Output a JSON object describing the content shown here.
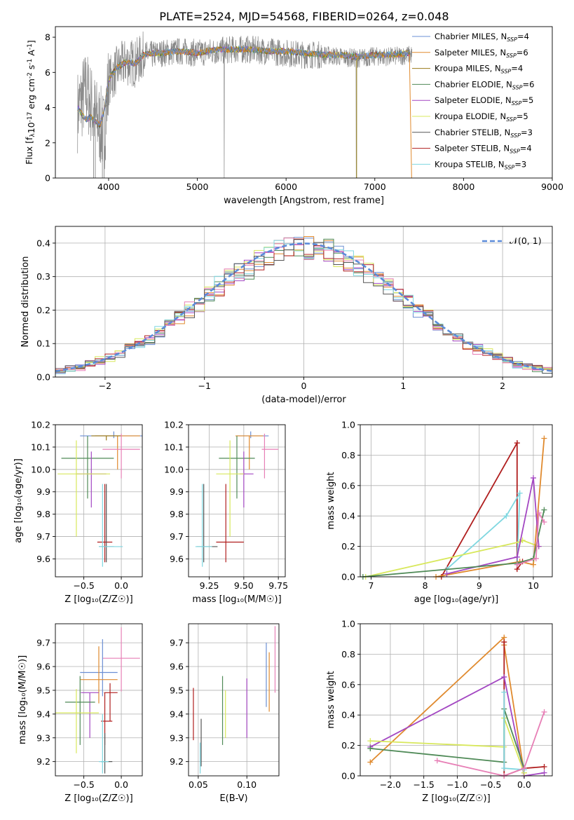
{
  "title": "PLATE=2524, MJD=54568, FIBERID=0264, z=0.048",
  "colors": {
    "c0": "#6b8fd4",
    "c1": "#e08a2e",
    "c2": "#9a7a1a",
    "c3": "#4f8a57",
    "c4": "#a347c2",
    "c5": "#d8e85c",
    "c6": "#555555",
    "c7": "#b01e1e",
    "c8": "#7fd7e0",
    "gray": "#888888",
    "pink": "#e77fb6",
    "blue": "#5b8bd9"
  },
  "legend_spec": [
    {
      "label": "Chabrier MILES, N",
      "sub": "SSP",
      "tail": "=4",
      "color": "c0"
    },
    {
      "label": "Salpeter MILES, N",
      "sub": "SSP",
      "tail": "=6",
      "color": "c1"
    },
    {
      "label": "Kroupa MILES, N",
      "sub": "SSP",
      "tail": "=4",
      "color": "c2"
    },
    {
      "label": "Chabrier ELODIE, N",
      "sub": "SSP",
      "tail": "=6",
      "color": "c3"
    },
    {
      "label": "Salpeter ELODIE, N",
      "sub": "SSP",
      "tail": "=5",
      "color": "c4"
    },
    {
      "label": "Kroupa ELODIE, N",
      "sub": "SSP",
      "tail": "=5",
      "color": "c5"
    },
    {
      "label": "Chabrier STELIB, N",
      "sub": "SSP",
      "tail": "=3",
      "color": "c6"
    },
    {
      "label": "Salpeter STELIB, N",
      "sub": "SSP",
      "tail": "=4",
      "color": "c7"
    },
    {
      "label": "Kroupa STELIB, N",
      "sub": "SSP",
      "tail": "=3",
      "color": "c8"
    }
  ],
  "chart_data": [
    {
      "id": "spectrum",
      "type": "line",
      "xlabel": "wavelength [Angstrom, rest frame]",
      "ylabel_parts": [
        "Flux [f",
        "λ",
        "10",
        "-17",
        " erg cm",
        "-2",
        " s",
        "-1",
        " A",
        "-1",
        "]"
      ],
      "xlim": [
        3400,
        9000
      ],
      "ylim": [
        0,
        8.6
      ],
      "xticks": [
        4000,
        5000,
        6000,
        7000,
        8000,
        9000
      ],
      "yticks": [
        0,
        2,
        4,
        6,
        8
      ],
      "data_x": [
        3650,
        3700,
        3750,
        3800,
        3850,
        3900,
        3950,
        4000,
        4100,
        4200,
        4300,
        4400,
        4500,
        4600,
        4800,
        5000,
        5200,
        5400,
        5600,
        5800,
        6000,
        6200,
        6400,
        6600,
        6800,
        7000,
        7200,
        7400
      ],
      "data_y": [
        3.8,
        4.5,
        5.0,
        4.2,
        3.5,
        3.0,
        2.5,
        5.5,
        6.2,
        6.6,
        6.5,
        7.0,
        7.0,
        7.1,
        7.2,
        7.1,
        7.2,
        7.3,
        7.3,
        7.2,
        7.1,
        7.0,
        7.0,
        6.9,
        6.8,
        6.9,
        6.9,
        7.0
      ],
      "model_x": [
        3650,
        3700,
        3750,
        3800,
        3850,
        3900,
        3950,
        4000,
        4100,
        4200,
        4300,
        4400,
        4500,
        4600,
        4800,
        5000,
        5200,
        5400,
        5600,
        5800,
        6000,
        6200,
        6400,
        6600,
        6800,
        7000,
        7200,
        7400
      ],
      "model_y": [
        4.0,
        3.6,
        3.3,
        3.5,
        3.2,
        3.0,
        3.8,
        5.6,
        6.3,
        6.6,
        6.5,
        7.0,
        7.1,
        7.1,
        7.2,
        7.1,
        7.3,
        7.3,
        7.3,
        7.2,
        7.2,
        7.1,
        7.0,
        7.0,
        6.9,
        7.0,
        7.0,
        7.1
      ]
    },
    {
      "id": "residuals",
      "type": "line",
      "xlabel": "(data-model)/error",
      "ylabel": "Normed distribution",
      "xlim": [
        -2.5,
        2.5
      ],
      "ylim": [
        0,
        0.45
      ],
      "xticks": [
        -2,
        -1,
        0,
        1,
        2
      ],
      "yticks": [
        0.0,
        0.1,
        0.2,
        0.3,
        0.4
      ],
      "gaussian_label": "𝒩(0, 1)"
    },
    {
      "id": "age_vs_Z",
      "type": "scatter",
      "xlabel": "Z [log₁₀(Z/Z☉)]",
      "ylabel": "age  [log₁₀(age/yr)]",
      "xlim": [
        -0.88,
        0.28
      ],
      "ylim": [
        9.52,
        10.2
      ],
      "xticks": [
        -0.5,
        0.0
      ],
      "yticks": [
        9.6,
        9.7,
        9.8,
        9.9,
        10.0,
        10.1,
        10.2
      ],
      "points": [
        {
          "c": "c0",
          "x": -0.1,
          "xerr": [
            0.45,
            0.45
          ],
          "y": 10.15,
          "yerr": [
            0.01,
            0.02
          ]
        },
        {
          "c": "c1",
          "x": -0.05,
          "xerr": [
            0.3,
            0.3
          ],
          "y": 10.15,
          "yerr": [
            0.15,
            0.0
          ]
        },
        {
          "c": "c2",
          "x": -0.2,
          "xerr": [
            0.2,
            0.2
          ],
          "y": 10.15,
          "yerr": [
            0.02,
            0.0
          ]
        },
        {
          "c": "pink",
          "x": 0.0,
          "xerr": [
            0.25,
            0.25
          ],
          "y": 10.09,
          "yerr": [
            0.13,
            0.07
          ]
        },
        {
          "c": "c3",
          "x": -0.45,
          "xerr": [
            0.35,
            0.35
          ],
          "y": 10.05,
          "yerr": [
            0.18,
            0.1
          ]
        },
        {
          "c": "c4",
          "x": -0.4,
          "xerr": [
            0.2,
            0.2
          ],
          "y": 9.98,
          "yerr": [
            0.15,
            0.1
          ]
        },
        {
          "c": "c5",
          "x": -0.6,
          "xerr": [
            0.25,
            0.45
          ],
          "y": 9.98,
          "yerr": [
            0.28,
            0.15
          ]
        },
        {
          "c": "c7",
          "x": -0.22,
          "xerr": [
            0.1,
            0.1
          ],
          "y": 9.675,
          "yerr": [
            0.09,
            0.26
          ]
        },
        {
          "c": "c6",
          "x": -0.2,
          "xerr": [
            0.1,
            0.1
          ],
          "y": 9.655,
          "yerr": [
            0.07,
            0.28
          ]
        },
        {
          "c": "c8",
          "x": -0.25,
          "xerr": [
            0.05,
            0.27
          ],
          "y": 9.655,
          "yerr": [
            0.09,
            0.28
          ]
        }
      ]
    },
    {
      "id": "age_vs_mass",
      "type": "scatter",
      "xlabel": "mass [log₁₀(M/M☉)]",
      "ylabel": "",
      "xlim": [
        9.1,
        9.8
      ],
      "ylim": [
        9.52,
        10.2
      ],
      "xticks": [
        9.25,
        9.5,
        9.75
      ],
      "yticks": [
        9.6,
        9.7,
        9.8,
        9.9,
        10.0,
        10.1,
        10.2
      ],
      "points": [
        {
          "c": "c0",
          "x": 9.55,
          "xerr": [
            0.1,
            0.13
          ],
          "y": 10.15,
          "yerr": [
            0.01,
            0.02
          ]
        },
        {
          "c": "c1",
          "x": 9.54,
          "xerr": [
            0.1,
            0.1
          ],
          "y": 10.15,
          "yerr": [
            0.15,
            0.0
          ]
        },
        {
          "c": "pink",
          "x": 9.65,
          "xerr": [
            0.02,
            0.1
          ],
          "y": 10.09,
          "yerr": [
            0.13,
            0.07
          ]
        },
        {
          "c": "c3",
          "x": 9.45,
          "xerr": [
            0.13,
            0.13
          ],
          "y": 10.05,
          "yerr": [
            0.18,
            0.1
          ]
        },
        {
          "c": "c4",
          "x": 9.5,
          "xerr": [
            0.03,
            0.07
          ],
          "y": 9.98,
          "yerr": [
            0.15,
            0.1
          ]
        },
        {
          "c": "c5",
          "x": 9.4,
          "xerr": [
            0.1,
            0.1
          ],
          "y": 9.98,
          "yerr": [
            0.28,
            0.15
          ]
        },
        {
          "c": "c7",
          "x": 9.37,
          "xerr": [
            0.07,
            0.13
          ],
          "y": 9.675,
          "yerr": [
            0.09,
            0.26
          ]
        },
        {
          "c": "c6",
          "x": 9.21,
          "xerr": [
            0.05,
            0.1
          ],
          "y": 9.655,
          "yerr": [
            0.07,
            0.28
          ]
        },
        {
          "c": "c8",
          "x": 9.2,
          "xerr": [
            0.05,
            0.07
          ],
          "y": 9.655,
          "yerr": [
            0.09,
            0.28
          ]
        }
      ]
    },
    {
      "id": "weight_vs_age",
      "type": "line",
      "xlabel": "age  [log₁₀(age/yr)]",
      "ylabel": "mass weight",
      "xlim": [
        6.8,
        10.35
      ],
      "ylim": [
        0,
        1
      ],
      "xticks": [
        7,
        8,
        9,
        10
      ],
      "yticks": [
        0.0,
        0.2,
        0.4,
        0.6,
        0.8,
        1.0
      ],
      "series": [
        {
          "c": "c7",
          "pts": [
            [
              8.3,
              0.0
            ],
            [
              9.7,
              0.88
            ],
            [
              9.7,
              0.05
            ],
            [
              9.8,
              0.1
            ]
          ]
        },
        {
          "c": "c8",
          "pts": [
            [
              8.4,
              0.05
            ],
            [
              9.5,
              0.4
            ],
            [
              9.75,
              0.55
            ],
            [
              9.7,
              0.08
            ]
          ]
        },
        {
          "c": "c5",
          "pts": [
            [
              6.9,
              0.0
            ],
            [
              9.75,
              0.23
            ],
            [
              9.8,
              0.24
            ],
            [
              10.1,
              0.2
            ]
          ]
        },
        {
          "c": "c1",
          "pts": [
            [
              8.2,
              0.0
            ],
            [
              9.75,
              0.1
            ],
            [
              10.0,
              0.08
            ],
            [
              10.2,
              0.91
            ]
          ]
        },
        {
          "c": "c4",
          "pts": [
            [
              8.4,
              0.02
            ],
            [
              9.7,
              0.13
            ],
            [
              10.0,
              0.65
            ],
            [
              10.1,
              0.2
            ]
          ]
        },
        {
          "c": "c3",
          "pts": [
            [
              6.85,
              0.0
            ],
            [
              9.7,
              0.09
            ],
            [
              10.0,
              0.12
            ],
            [
              10.2,
              0.44
            ]
          ]
        },
        {
          "c": "pink",
          "pts": [
            [
              9.7,
              0.08
            ],
            [
              10.05,
              0.12
            ],
            [
              10.1,
              0.42
            ],
            [
              10.2,
              0.36
            ]
          ]
        }
      ]
    },
    {
      "id": "mass_vs_Z",
      "type": "scatter",
      "xlabel": "Z [log₁₀(Z/Z☉)]",
      "ylabel": "mass [log₁₀(M/M☉)]",
      "xlim": [
        -0.88,
        0.28
      ],
      "ylim": [
        9.14,
        9.78
      ],
      "xticks": [
        -0.5,
        0.0
      ],
      "yticks": [
        9.2,
        9.3,
        9.4,
        9.5,
        9.6,
        9.7
      ],
      "points": [
        {
          "c": "pink",
          "x": 0.0,
          "xerr": [
            0.25,
            0.25
          ],
          "y": 9.635,
          "yerr": [
            0.14,
            0.13
          ]
        },
        {
          "c": "c0",
          "x": -0.25,
          "xerr": [
            0.3,
            0.2
          ],
          "y": 9.575,
          "yerr": [
            0.1,
            0.14
          ]
        },
        {
          "c": "c1",
          "x": -0.3,
          "xerr": [
            0.25,
            0.25
          ],
          "y": 9.545,
          "yerr": [
            0.1,
            0.14
          ]
        },
        {
          "c": "c4",
          "x": -0.42,
          "xerr": [
            0.12,
            0.12
          ],
          "y": 9.49,
          "yerr": [
            0.19,
            0.0
          ]
        },
        {
          "c": "c7",
          "x": -0.15,
          "xerr": [
            0.08,
            0.1
          ],
          "y": 9.49,
          "yerr": [
            0.12,
            0.04
          ]
        },
        {
          "c": "c3",
          "x": -0.55,
          "xerr": [
            0.2,
            0.2
          ],
          "y": 9.45,
          "yerr": [
            0.18,
            0.11
          ]
        },
        {
          "c": "c5",
          "x": -0.6,
          "xerr": [
            0.3,
            0.3
          ],
          "y": 9.405,
          "yerr": [
            0.17,
            0.1
          ]
        },
        {
          "c": "c7",
          "x": -0.22,
          "xerr": [
            0.05,
            0.1
          ],
          "y": 9.37,
          "yerr": [
            0.1,
            0.12
          ]
        },
        {
          "c": "c6",
          "x": -0.22,
          "xerr": [
            0.05,
            0.1
          ],
          "y": 9.2,
          "yerr": [
            0.05,
            0.12
          ]
        },
        {
          "c": "c8",
          "x": -0.25,
          "xerr": [
            0.05,
            0.08
          ],
          "y": 9.2,
          "yerr": [
            0.05,
            0.2
          ]
        }
      ]
    },
    {
      "id": "mass_vs_EBV",
      "type": "scatter",
      "xlabel": "E(B-V)",
      "ylabel": "",
      "xlim": [
        0.04,
        0.133
      ],
      "ylim": [
        9.14,
        9.78
      ],
      "xticks": [
        0.05,
        0.1
      ],
      "yticks": [
        9.2,
        9.3,
        9.4,
        9.5,
        9.6,
        9.7
      ],
      "points": [
        {
          "c": "c7",
          "x": 0.045,
          "y": 9.4,
          "yerr": [
            0.11,
            0.11
          ]
        },
        {
          "c": "c6",
          "x": 0.053,
          "y": 9.28,
          "yerr": [
            0.1,
            0.1
          ]
        },
        {
          "c": "c8",
          "x": 0.052,
          "y": 9.2,
          "yerr": [
            0.05,
            0.08
          ]
        },
        {
          "c": "c3",
          "x": 0.075,
          "y": 9.42,
          "yerr": [
            0.15,
            0.14
          ]
        },
        {
          "c": "c5",
          "x": 0.078,
          "y": 9.41,
          "yerr": [
            0.11,
            0.09
          ]
        },
        {
          "c": "c4",
          "x": 0.1,
          "y": 9.43,
          "yerr": [
            0.13,
            0.12
          ]
        },
        {
          "c": "c0",
          "x": 0.12,
          "y": 9.57,
          "yerr": [
            0.14,
            0.13
          ]
        },
        {
          "c": "c1",
          "x": 0.123,
          "y": 9.53,
          "yerr": [
            0.12,
            0.13
          ]
        },
        {
          "c": "pink",
          "x": 0.129,
          "y": 9.63,
          "yerr": [
            0.14,
            0.14
          ]
        }
      ]
    },
    {
      "id": "weight_vs_Z",
      "type": "line",
      "xlabel": "Z [log₁₀(Z/Z☉)]",
      "ylabel": "mass weight",
      "xlim": [
        -2.45,
        0.42
      ],
      "ylim": [
        0,
        1
      ],
      "xticks": [
        -2.0,
        -1.5,
        -1.0,
        -0.5,
        0.0
      ],
      "yticks": [
        0.0,
        0.2,
        0.4,
        0.6,
        0.8,
        1.0
      ],
      "series": [
        {
          "c": "c1",
          "pts": [
            [
              -2.3,
              0.09
            ],
            [
              -0.3,
              0.91
            ],
            [
              -0.3,
              0.86
            ],
            [
              0.0,
              0.02
            ]
          ]
        },
        {
          "c": "c7",
          "pts": [
            [
              -0.3,
              0.88
            ],
            [
              -0.3,
              0.0
            ],
            [
              0.0,
              0.05
            ],
            [
              0.3,
              0.06
            ]
          ]
        },
        {
          "c": "c4",
          "pts": [
            [
              -2.3,
              0.19
            ],
            [
              -0.3,
              0.65
            ],
            [
              0.0,
              0.0
            ],
            [
              0.3,
              0.02
            ]
          ]
        },
        {
          "c": "c5",
          "pts": [
            [
              -2.3,
              0.23
            ],
            [
              -0.3,
              0.19
            ],
            [
              -0.3,
              0.38
            ],
            [
              0.0,
              0.02
            ]
          ]
        },
        {
          "c": "c3",
          "pts": [
            [
              -2.3,
              0.18
            ],
            [
              -0.3,
              0.09
            ],
            [
              -0.3,
              0.44
            ],
            [
              0.0,
              0.05
            ]
          ]
        },
        {
          "c": "c8",
          "pts": [
            [
              -0.3,
              0.55
            ],
            [
              -0.3,
              0.05
            ],
            [
              0.0,
              0.04
            ]
          ]
        },
        {
          "c": "pink",
          "pts": [
            [
              -1.3,
              0.1
            ],
            [
              -0.3,
              0.0
            ],
            [
              0.0,
              0.05
            ],
            [
              0.3,
              0.42
            ]
          ]
        }
      ]
    }
  ]
}
